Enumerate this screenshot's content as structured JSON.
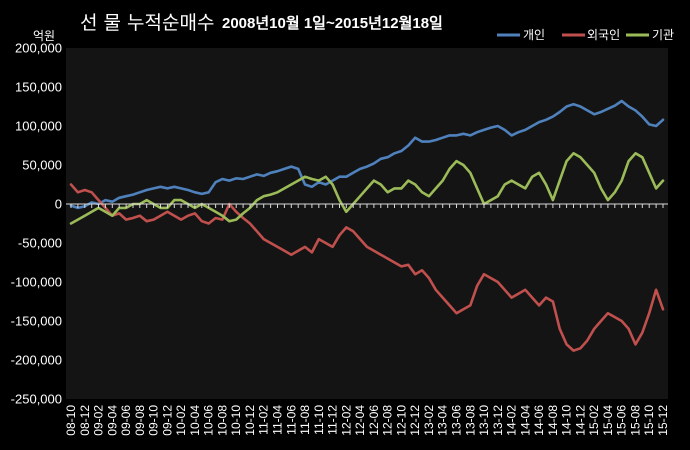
{
  "chart_data": {
    "type": "line",
    "title": "선 물 누적순매수",
    "subtitle": "2008년10월 1일~2015년12월18일",
    "ylabel": "억원",
    "ylim": [
      -250000,
      200000
    ],
    "yticks": [
      "200,000",
      "150,000",
      "100,000",
      "50,000",
      "0",
      "-50,000",
      "-100,000",
      "-150,000",
      "-200,000",
      "-250,000"
    ],
    "xticks": [
      "08-10",
      "08-12",
      "09-02",
      "09-04",
      "09-06",
      "09-08",
      "09-10",
      "09-12",
      "10-02",
      "10-04",
      "10-06",
      "10-08",
      "10-10",
      "10-12",
      "11-02",
      "11-04",
      "11-06",
      "11-08",
      "11-10",
      "11-12",
      "12-02",
      "12-04",
      "12-06",
      "12-08",
      "12-10",
      "12-12",
      "13-02",
      "13-04",
      "13-06",
      "13-08",
      "13-10",
      "13-12",
      "14-02",
      "14-04",
      "14-06",
      "14-08",
      "14-10",
      "14-12",
      "15-02",
      "15-04",
      "15-06",
      "15-08",
      "15-10",
      "15-12"
    ],
    "x": [
      "08-10",
      "08-11",
      "08-12",
      "09-01",
      "09-02",
      "09-03",
      "09-04",
      "09-05",
      "09-06",
      "09-07",
      "09-08",
      "09-09",
      "09-10",
      "09-11",
      "09-12",
      "10-01",
      "10-02",
      "10-03",
      "10-04",
      "10-05",
      "10-06",
      "10-07",
      "10-08",
      "10-09",
      "10-10",
      "10-11",
      "10-12",
      "11-01",
      "11-02",
      "11-03",
      "11-04",
      "11-05",
      "11-06",
      "11-07",
      "11-08",
      "11-09",
      "11-10",
      "11-11",
      "11-12",
      "12-01",
      "12-02",
      "12-03",
      "12-04",
      "12-05",
      "12-06",
      "12-07",
      "12-08",
      "12-09",
      "12-10",
      "12-11",
      "12-12",
      "13-01",
      "13-02",
      "13-03",
      "13-04",
      "13-05",
      "13-06",
      "13-07",
      "13-08",
      "13-09",
      "13-10",
      "13-11",
      "13-12",
      "14-01",
      "14-02",
      "14-03",
      "14-04",
      "14-05",
      "14-06",
      "14-07",
      "14-08",
      "14-09",
      "14-10",
      "14-11",
      "14-12",
      "15-01",
      "15-02",
      "15-03",
      "15-04",
      "15-05",
      "15-06",
      "15-07",
      "15-08",
      "15-09",
      "15-10",
      "15-11",
      "15-12"
    ],
    "series": [
      {
        "name": "개인",
        "color": "#4F81BD",
        "values": [
          -2000,
          -5000,
          -3000,
          2000,
          0,
          5000,
          3000,
          8000,
          10000,
          12000,
          15000,
          18000,
          20000,
          22000,
          20000,
          22000,
          20000,
          18000,
          15000,
          13000,
          15000,
          28000,
          32000,
          30000,
          33000,
          32000,
          35000,
          38000,
          36000,
          40000,
          42000,
          45000,
          48000,
          45000,
          25000,
          22000,
          28000,
          25000,
          30000,
          35000,
          35000,
          40000,
          45000,
          48000,
          52000,
          58000,
          60000,
          65000,
          68000,
          75000,
          85000,
          80000,
          80000,
          82000,
          85000,
          88000,
          88000,
          90000,
          88000,
          92000,
          95000,
          98000,
          100000,
          95000,
          88000,
          92000,
          95000,
          100000,
          105000,
          108000,
          112000,
          118000,
          125000,
          128000,
          125000,
          120000,
          115000,
          118000,
          122000,
          126000,
          132000,
          125000,
          120000,
          112000,
          102000,
          100000,
          108000
        ]
      },
      {
        "name": "외국인",
        "color": "#C0504D",
        "values": [
          25000,
          15000,
          18000,
          15000,
          5000,
          -5000,
          -15000,
          -12000,
          -20000,
          -18000,
          -15000,
          -22000,
          -20000,
          -15000,
          -10000,
          -15000,
          -20000,
          -15000,
          -12000,
          -22000,
          -25000,
          -18000,
          -20000,
          0,
          -10000,
          -18000,
          -25000,
          -35000,
          -45000,
          -50000,
          -55000,
          -60000,
          -65000,
          -60000,
          -55000,
          -62000,
          -45000,
          -50000,
          -55000,
          -40000,
          -30000,
          -35000,
          -45000,
          -55000,
          -60000,
          -65000,
          -70000,
          -75000,
          -80000,
          -78000,
          -90000,
          -85000,
          -95000,
          -110000,
          -120000,
          -130000,
          -140000,
          -135000,
          -130000,
          -105000,
          -90000,
          -95000,
          -100000,
          -110000,
          -120000,
          -115000,
          -110000,
          -120000,
          -130000,
          -120000,
          -125000,
          -160000,
          -180000,
          -188000,
          -185000,
          -175000,
          -160000,
          -150000,
          -140000,
          -145000,
          -150000,
          -160000,
          -180000,
          -165000,
          -140000,
          -110000,
          -135000
        ]
      },
      {
        "name": "기관",
        "color": "#9BBB59",
        "values": [
          -25000,
          -20000,
          -15000,
          -10000,
          -5000,
          -10000,
          -15000,
          -5000,
          -5000,
          0,
          0,
          5000,
          0,
          -5000,
          -5000,
          5000,
          5000,
          0,
          -5000,
          0,
          -5000,
          -10000,
          -15000,
          -22000,
          -20000,
          -12000,
          -5000,
          5000,
          10000,
          12000,
          15000,
          20000,
          25000,
          30000,
          35000,
          32000,
          30000,
          35000,
          25000,
          5000,
          -10000,
          0,
          10000,
          20000,
          30000,
          25000,
          15000,
          20000,
          20000,
          30000,
          25000,
          15000,
          10000,
          20000,
          30000,
          45000,
          55000,
          50000,
          40000,
          20000,
          0,
          5000,
          10000,
          25000,
          30000,
          25000,
          20000,
          35000,
          40000,
          25000,
          5000,
          30000,
          55000,
          65000,
          60000,
          50000,
          40000,
          20000,
          5000,
          15000,
          30000,
          55000,
          65000,
          60000,
          40000,
          20000,
          30000
        ]
      }
    ],
    "legend": "top-right",
    "grid": false
  },
  "colors": {
    "background": "#000000",
    "plot_area": "#141414",
    "axis": "#d9d9d9",
    "text": "#ffffff"
  }
}
